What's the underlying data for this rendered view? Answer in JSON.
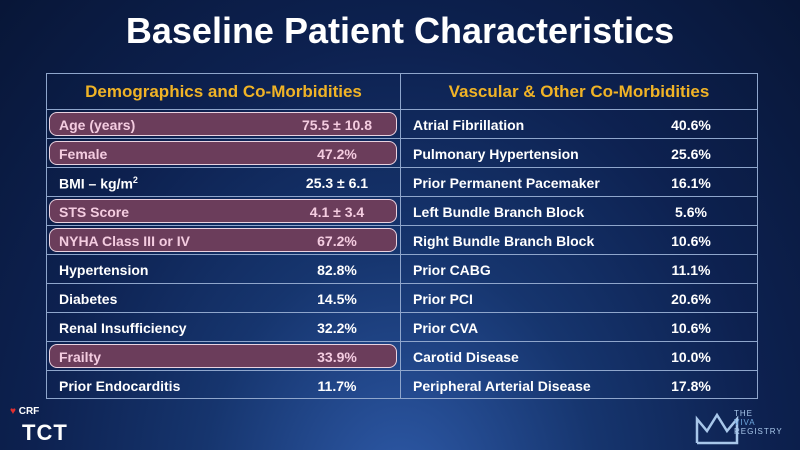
{
  "title": "Baseline Patient Characteristics",
  "left": {
    "header": "Demographics and Co-Morbidities",
    "rows": [
      {
        "label": "Age (years)",
        "value": "75.5 ± 10.8",
        "highlight": true
      },
      {
        "label": "Female",
        "value": "47.2%",
        "highlight": true
      },
      {
        "label": "BMI – kg/m",
        "label_sup": "2",
        "value": "25.3 ± 6.1",
        "highlight": false
      },
      {
        "label": "STS Score",
        "value": "4.1 ± 3.4",
        "highlight": true
      },
      {
        "label": "NYHA Class III or IV",
        "value": "67.2%",
        "highlight": true
      },
      {
        "label": "Hypertension",
        "value": "82.8%",
        "highlight": false
      },
      {
        "label": "Diabetes",
        "value": "14.5%",
        "highlight": false
      },
      {
        "label": "Renal Insufficiency",
        "value": "32.2%",
        "highlight": false
      },
      {
        "label": "Frailty",
        "value": "33.9%",
        "highlight": true
      },
      {
        "label": "Prior Endocarditis",
        "value": "11.7%",
        "highlight": false
      }
    ]
  },
  "right": {
    "header": "Vascular & Other Co-Morbidities",
    "rows": [
      {
        "label": "Atrial Fibrillation",
        "value": "40.6%"
      },
      {
        "label": "Pulmonary Hypertension",
        "value": "25.6%"
      },
      {
        "label": "Prior Permanent Pacemaker",
        "value": "16.1%"
      },
      {
        "label": "Left Bundle Branch Block",
        "value": "5.6%"
      },
      {
        "label": "Right Bundle Branch Block",
        "value": "10.6%"
      },
      {
        "label": "Prior CABG",
        "value": "11.1%"
      },
      {
        "label": "Prior PCI",
        "value": "20.6%"
      },
      {
        "label": "Prior CVA",
        "value": "10.6%"
      },
      {
        "label": "Carotid Disease",
        "value": "10.0%"
      },
      {
        "label": "Peripheral Arterial Disease",
        "value": "17.8%"
      }
    ]
  },
  "footer": {
    "crf": "CRF",
    "tct": "TCT",
    "logo_text_1": "THE",
    "logo_text_2": "VIVA",
    "logo_text_3": "REGISTRY"
  },
  "colors": {
    "header_text": "#f0b326",
    "highlight_fill": "#6b3d5b",
    "highlight_text": "#f4cce0",
    "background": "#0d2150"
  }
}
